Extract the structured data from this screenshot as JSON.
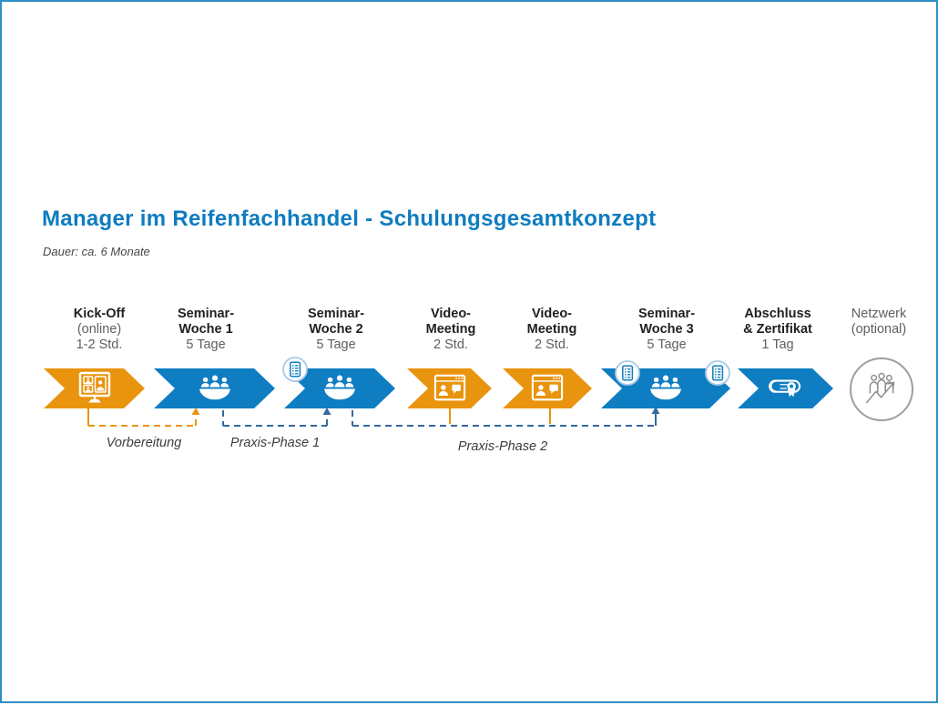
{
  "page": {
    "title": "Manager im Reifenfachhandel - Schulungsgesamtkonzept",
    "subtitle": "Dauer: ca. 6 Monate"
  },
  "colors": {
    "accent_blue": "#0f7dc2",
    "accent_orange": "#e9940f",
    "dashed_blue": "#35699f",
    "network_gray": "#8f8f8f"
  },
  "stages": [
    {
      "id": "kick-off",
      "shape": "arrow",
      "color": "orange",
      "icon": "video-call-monitor-icon",
      "lines": [
        {
          "t": "Kick-Off",
          "s": "b"
        },
        {
          "t": "(online)",
          "s": "g"
        },
        {
          "t": "1-2 Std.",
          "s": "g"
        }
      ],
      "badges": []
    },
    {
      "id": "seminar-woche-1",
      "shape": "arrow",
      "color": "blue",
      "icon": "meeting-people-icon",
      "lines": [
        {
          "t": "Seminar-",
          "s": "b"
        },
        {
          "t": "Woche 1",
          "s": "b"
        },
        {
          "t": "5 Tage",
          "s": "g"
        }
      ],
      "badges": []
    },
    {
      "id": "seminar-woche-2",
      "shape": "arrow",
      "color": "blue",
      "icon": "meeting-people-icon",
      "lines": [
        {
          "t": "Seminar-",
          "s": "b"
        },
        {
          "t": "Woche 2",
          "s": "b"
        },
        {
          "t": "5 Tage",
          "s": "g"
        }
      ],
      "badges": [
        "checklist-icon"
      ]
    },
    {
      "id": "video-meeting-1",
      "shape": "arrow",
      "color": "orange",
      "icon": "video-meeting-window-icon",
      "lines": [
        {
          "t": "Video-",
          "s": "b"
        },
        {
          "t": "Meeting",
          "s": "b"
        },
        {
          "t": "2 Std.",
          "s": "g"
        }
      ],
      "badges": []
    },
    {
      "id": "video-meeting-2",
      "shape": "arrow",
      "color": "orange",
      "icon": "video-meeting-window-icon",
      "lines": [
        {
          "t": "Video-",
          "s": "b"
        },
        {
          "t": "Meeting",
          "s": "b"
        },
        {
          "t": "2 Std.",
          "s": "g"
        }
      ],
      "badges": []
    },
    {
      "id": "seminar-woche-3",
      "shape": "arrow",
      "color": "blue",
      "icon": "meeting-people-icon",
      "lines": [
        {
          "t": "Seminar-",
          "s": "b"
        },
        {
          "t": "Woche 3",
          "s": "b"
        },
        {
          "t": "5 Tage",
          "s": "g"
        }
      ],
      "badges": [
        "checklist-icon",
        "checklist-icon"
      ]
    },
    {
      "id": "abschluss-zertifikat",
      "shape": "arrow",
      "color": "blue",
      "icon": "certificate-icon",
      "lines": [
        {
          "t": "Abschluss",
          "s": "b"
        },
        {
          "t": "& Zertifikat",
          "s": "b"
        },
        {
          "t": "1 Tag",
          "s": "g"
        }
      ],
      "badges": []
    },
    {
      "id": "netzwerk",
      "shape": "circle",
      "color": "gray",
      "icon": "network-growth-icon",
      "lines": [
        {
          "t": "Netzwerk",
          "s": "g"
        },
        {
          "t": "(optional)",
          "s": "g"
        }
      ],
      "badges": []
    }
  ],
  "phases": [
    {
      "label": "Vorbereitung",
      "color": "orange"
    },
    {
      "label": "Praxis-Phase 1",
      "color": "blue"
    },
    {
      "label": "Praxis-Phase 2",
      "color": "blue"
    }
  ]
}
